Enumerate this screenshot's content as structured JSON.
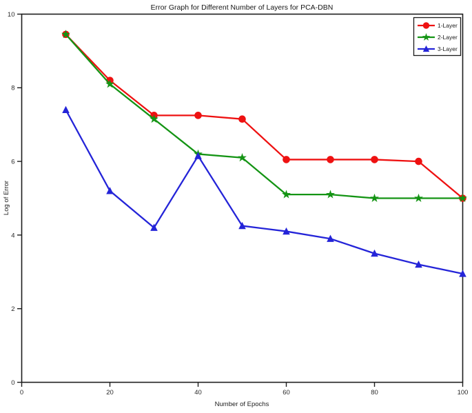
{
  "chart_data": {
    "type": "line",
    "title": "Error Graph for Different Number of Layers for PCA-DBN",
    "xlabel": "Number of Epochs",
    "ylabel": "Log of Error",
    "xlim": [
      0,
      100
    ],
    "ylim": [
      0,
      10
    ],
    "x_ticks": [
      0,
      20,
      40,
      60,
      80,
      100
    ],
    "y_ticks": [
      0,
      2,
      4,
      6,
      8,
      10
    ],
    "grid": false,
    "legend_position": "upper right",
    "x": [
      10,
      20,
      30,
      40,
      50,
      60,
      70,
      80,
      90,
      100
    ],
    "series": [
      {
        "name": "1-Layer",
        "color": "#ee1111",
        "marker": "circle",
        "values": [
          9.45,
          8.2,
          7.25,
          7.25,
          7.15,
          6.05,
          6.05,
          6.05,
          6.0,
          5.0
        ]
      },
      {
        "name": "2-Layer",
        "color": "#149414",
        "marker": "star",
        "values": [
          9.45,
          8.1,
          7.15,
          6.2,
          6.1,
          5.1,
          5.1,
          5.0,
          5.0,
          5.0
        ]
      },
      {
        "name": "3-Layer",
        "color": "#2424d8",
        "marker": "triangle",
        "values": [
          7.4,
          5.2,
          4.2,
          6.15,
          4.25,
          4.1,
          3.9,
          3.5,
          3.2,
          2.95
        ]
      }
    ]
  }
}
